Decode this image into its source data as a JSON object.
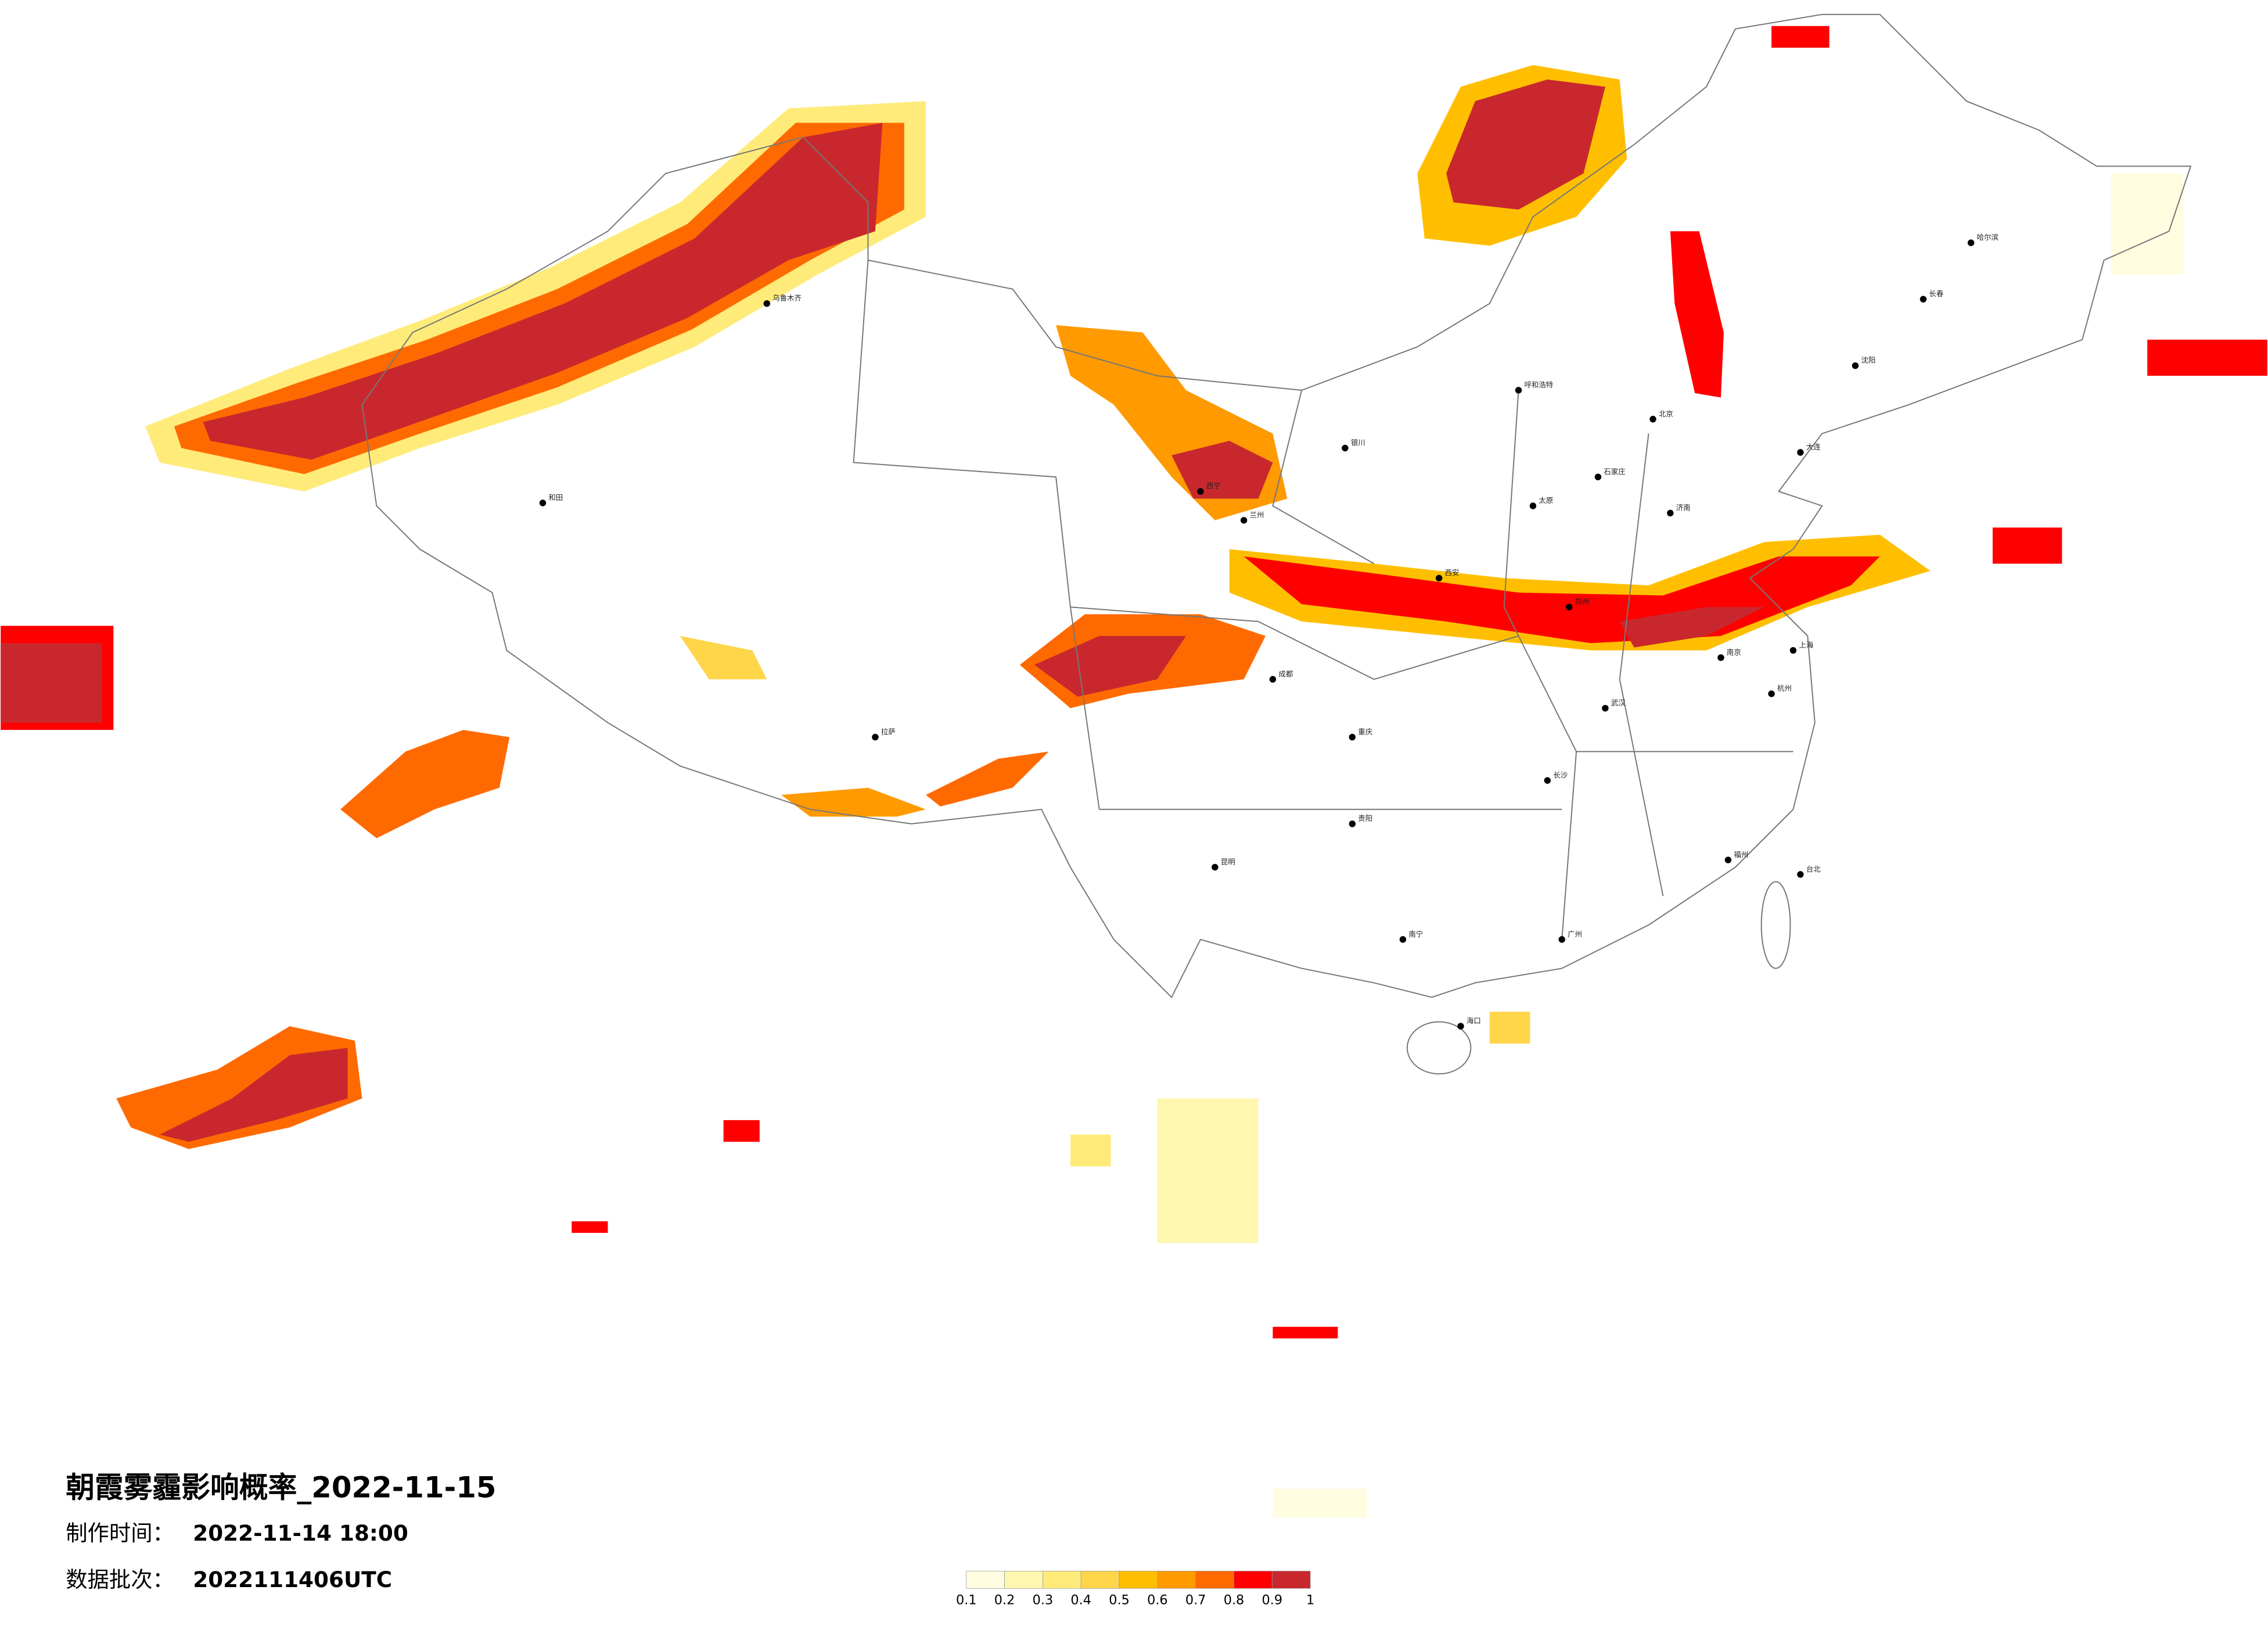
{
  "header": {
    "title": "朝霞雾霾影响概率_2022-11-15",
    "production_time": {
      "label": "制作时间：",
      "value": "2022-11-14 18:00"
    },
    "batch": {
      "label": "数据批次：",
      "value": "2022111406UTC"
    }
  },
  "legend": {
    "ticks": [
      0.1,
      0.2,
      0.3,
      0.4,
      0.5,
      0.6,
      0.7,
      0.8,
      0.9,
      1
    ],
    "colors": [
      "#fffce0",
      "#fff6b0",
      "#ffeb7a",
      "#ffd54a",
      "#ffbf00",
      "#ff9a00",
      "#ff6a00",
      "#ff0000",
      "#c8282d"
    ]
  },
  "cities": [
    "哈尔滨",
    "长春",
    "沈阳",
    "大连",
    "北京",
    "石家庄",
    "太原",
    "呼和浩特",
    "济南",
    "郑州",
    "南京",
    "上海",
    "杭州",
    "武汉",
    "长沙",
    "广州",
    "南宁",
    "贵阳",
    "昆明",
    "成都",
    "重庆",
    "西安",
    "兰州",
    "西宁",
    "银川",
    "拉萨",
    "乌鲁木齐",
    "和田",
    "台北",
    "海口",
    "福州"
  ]
}
